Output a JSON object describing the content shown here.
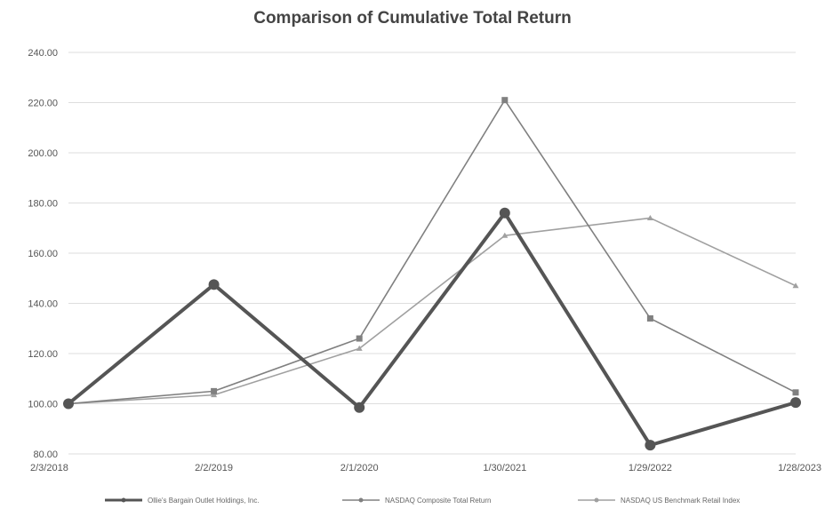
{
  "chart_data": {
    "type": "line",
    "title": "Comparison of Cumulative Total Return",
    "xlabel": "",
    "ylabel": "",
    "categories": [
      "2/3/2018",
      "2/2/2019",
      "2/1/2020",
      "1/30/2021",
      "1/29/2022",
      "1/28/2023"
    ],
    "y_tick_labels": [
      "80.00",
      "100.00",
      "120.00",
      "140.00",
      "160.00",
      "180.00",
      "200.00",
      "220.00",
      "240.00"
    ],
    "ylim": [
      80,
      240
    ],
    "grid": true,
    "legend_position": "bottom",
    "series": [
      {
        "name": "Ollie's Bargain Outlet Holdings, Inc.",
        "values": [
          100.0,
          147.5,
          98.5,
          176.0,
          83.5,
          100.5
        ],
        "color": "#555555"
      },
      {
        "name": "NASDAQ Composite Total Return",
        "values": [
          100.0,
          105.0,
          126.0,
          221.0,
          134.0,
          104.5
        ],
        "color": "#808080"
      },
      {
        "name": "NASDAQ US Benchmark Retail Index",
        "values": [
          100.0,
          103.5,
          122.0,
          167.0,
          174.0,
          147.0
        ],
        "color": "#a0a0a0"
      }
    ]
  }
}
